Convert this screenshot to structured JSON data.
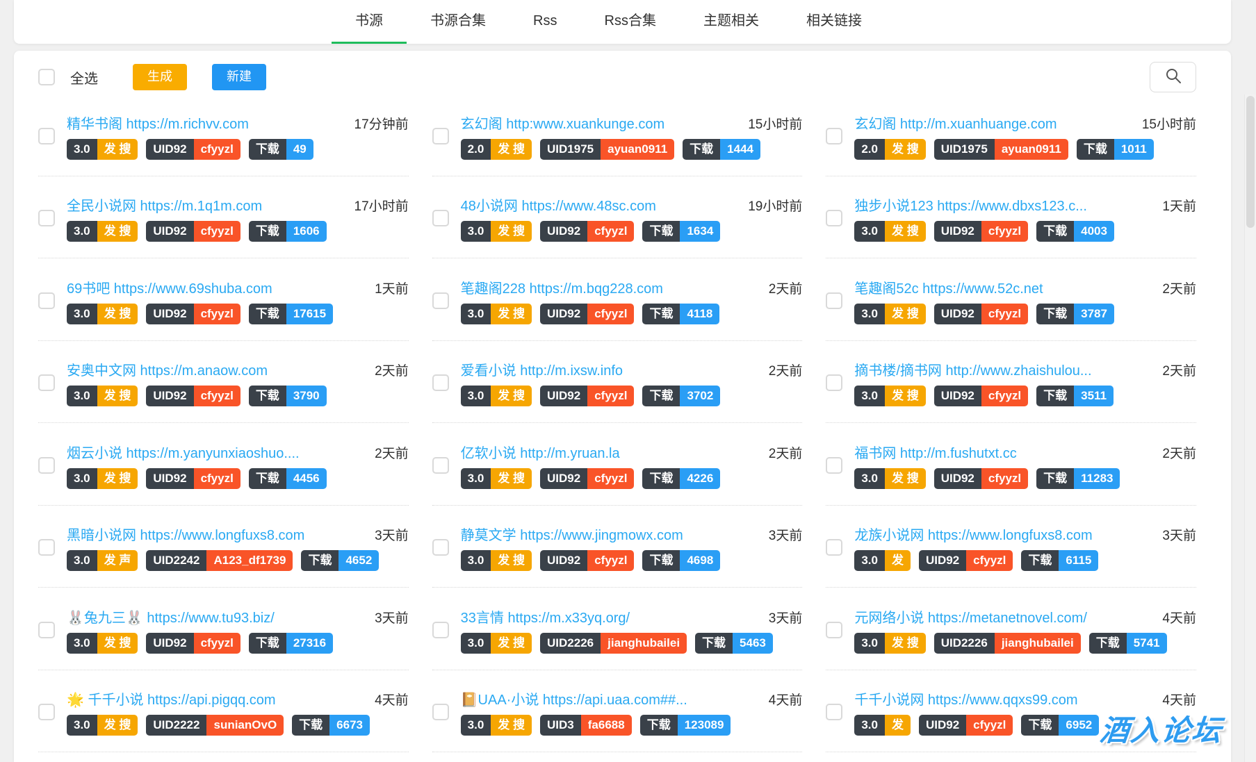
{
  "nav": {
    "tabs": [
      {
        "id": "book-source",
        "label": "书源",
        "active": true
      },
      {
        "id": "book-source-collection",
        "label": "书源合集",
        "active": false
      },
      {
        "id": "rss",
        "label": "Rss",
        "active": false
      },
      {
        "id": "rss-collection",
        "label": "Rss合集",
        "active": false
      },
      {
        "id": "theme-related",
        "label": "主题相关",
        "active": false
      },
      {
        "id": "related-links",
        "label": "相关链接",
        "active": false
      }
    ]
  },
  "toolbar": {
    "select_all_label": "全选",
    "generate_label": "生成",
    "create_label": "新建",
    "search_icon": "magnifier"
  },
  "colors": {
    "accent_green": "#1fbc5c",
    "button_orange": "#f9ac00",
    "button_blue": "#2196f3",
    "badge_dark": "#3a4149",
    "badge_orange": "#f6a602",
    "badge_red": "#f95428",
    "badge_blue": "#2a9ef5",
    "link_blue": "#2aa9f2"
  },
  "watermark": "酒入论坛",
  "cards": [
    {
      "title": "精华书阁 https://m.richvv.com",
      "time": "17分钟前",
      "version": "3.0",
      "tag": "发 搜",
      "uid": "UID92",
      "user": "cfyyzl",
      "download_label": "下载",
      "downloads": "49"
    },
    {
      "title": "玄幻阁 http:www.xuankunge.com",
      "time": "15小时前",
      "version": "2.0",
      "tag": "发 搜",
      "uid": "UID1975",
      "user": "ayuan0911",
      "download_label": "下载",
      "downloads": "1444"
    },
    {
      "title": "玄幻阁 http://m.xuanhuange.com",
      "time": "15小时前",
      "version": "2.0",
      "tag": "发 搜",
      "uid": "UID1975",
      "user": "ayuan0911",
      "download_label": "下载",
      "downloads": "1011"
    },
    {
      "title": "全民小说网 https://m.1q1m.com",
      "time": "17小时前",
      "version": "3.0",
      "tag": "发 搜",
      "uid": "UID92",
      "user": "cfyyzl",
      "download_label": "下载",
      "downloads": "1606"
    },
    {
      "title": "48小说网 https://www.48sc.com",
      "time": "19小时前",
      "version": "3.0",
      "tag": "发 搜",
      "uid": "UID92",
      "user": "cfyyzl",
      "download_label": "下载",
      "downloads": "1634"
    },
    {
      "title": "独步小说123 https://www.dbxs123.c...",
      "time": "1天前",
      "version": "3.0",
      "tag": "发 搜",
      "uid": "UID92",
      "user": "cfyyzl",
      "download_label": "下载",
      "downloads": "4003"
    },
    {
      "title": "69书吧 https://www.69shuba.com",
      "time": "1天前",
      "version": "3.0",
      "tag": "发 搜",
      "uid": "UID92",
      "user": "cfyyzl",
      "download_label": "下载",
      "downloads": "17615"
    },
    {
      "title": "笔趣阁228 https://m.bqg228.com",
      "time": "2天前",
      "version": "3.0",
      "tag": "发 搜",
      "uid": "UID92",
      "user": "cfyyzl",
      "download_label": "下载",
      "downloads": "4118"
    },
    {
      "title": "笔趣阁52c https://www.52c.net",
      "time": "2天前",
      "version": "3.0",
      "tag": "发 搜",
      "uid": "UID92",
      "user": "cfyyzl",
      "download_label": "下载",
      "downloads": "3787"
    },
    {
      "title": "安奥中文网 https://m.anaow.com",
      "time": "2天前",
      "version": "3.0",
      "tag": "发 搜",
      "uid": "UID92",
      "user": "cfyyzl",
      "download_label": "下载",
      "downloads": "3790"
    },
    {
      "title": "爱看小说 http://m.ixsw.info",
      "time": "2天前",
      "version": "3.0",
      "tag": "发 搜",
      "uid": "UID92",
      "user": "cfyyzl",
      "download_label": "下载",
      "downloads": "3702"
    },
    {
      "title": "摘书楼/摘书网 http://www.zhaishulou...",
      "time": "2天前",
      "version": "3.0",
      "tag": "发 搜",
      "uid": "UID92",
      "user": "cfyyzl",
      "download_label": "下载",
      "downloads": "3511"
    },
    {
      "title": "烟云小说 https://m.yanyunxiaoshuo....",
      "time": "2天前",
      "version": "3.0",
      "tag": "发 搜",
      "uid": "UID92",
      "user": "cfyyzl",
      "download_label": "下载",
      "downloads": "4456"
    },
    {
      "title": "亿软小说 http://m.yruan.la",
      "time": "2天前",
      "version": "3.0",
      "tag": "发 搜",
      "uid": "UID92",
      "user": "cfyyzl",
      "download_label": "下载",
      "downloads": "4226"
    },
    {
      "title": "福书网 http://m.fushutxt.cc",
      "time": "2天前",
      "version": "3.0",
      "tag": "发 搜",
      "uid": "UID92",
      "user": "cfyyzl",
      "download_label": "下载",
      "downloads": "11283"
    },
    {
      "title": "黑暗小说网 https://www.longfuxs8.com",
      "time": "3天前",
      "version": "3.0",
      "tag": "发 声",
      "uid": "UID2242",
      "user": "A123_df1739",
      "download_label": "下载",
      "downloads": "4652"
    },
    {
      "title": "静莫文学 https://www.jingmowx.com",
      "time": "3天前",
      "version": "3.0",
      "tag": "发 搜",
      "uid": "UID92",
      "user": "cfyyzl",
      "download_label": "下载",
      "downloads": "4698"
    },
    {
      "title": "龙族小说网 https://www.longfuxs8.com",
      "time": "3天前",
      "version": "3.0",
      "tag": "发",
      "uid": "UID92",
      "user": "cfyyzl",
      "download_label": "下载",
      "downloads": "6115"
    },
    {
      "title": "🐰兔九三🐰 https://www.tu93.biz/",
      "time": "3天前",
      "version": "3.0",
      "tag": "发 搜",
      "uid": "UID92",
      "user": "cfyyzl",
      "download_label": "下载",
      "downloads": "27316"
    },
    {
      "title": "33言情 https://m.x33yq.org/",
      "time": "3天前",
      "version": "3.0",
      "tag": "发 搜",
      "uid": "UID2226",
      "user": "jianghubailei",
      "download_label": "下载",
      "downloads": "5463"
    },
    {
      "title": "元网络小说 https://metanetnovel.com/",
      "time": "4天前",
      "version": "3.0",
      "tag": "发 搜",
      "uid": "UID2226",
      "user": "jianghubailei",
      "download_label": "下载",
      "downloads": "5741"
    },
    {
      "title": "🌟 千千小说 https://api.pigqq.com",
      "time": "4天前",
      "version": "3.0",
      "tag": "发 搜",
      "uid": "UID2222",
      "user": "sunianOvO",
      "download_label": "下载",
      "downloads": "6673"
    },
    {
      "title": "📔UAA·小说 https://api.uaa.com##...",
      "time": "4天前",
      "version": "3.0",
      "tag": "发 搜",
      "uid": "UID3",
      "user": "fa6688",
      "download_label": "下载",
      "downloads": "123089"
    },
    {
      "title": "千千小说网 https://www.qqxs99.com",
      "time": "4天前",
      "version": "3.0",
      "tag": "发",
      "uid": "UID92",
      "user": "cfyyzl",
      "download_label": "下载",
      "downloads": "6952"
    }
  ]
}
